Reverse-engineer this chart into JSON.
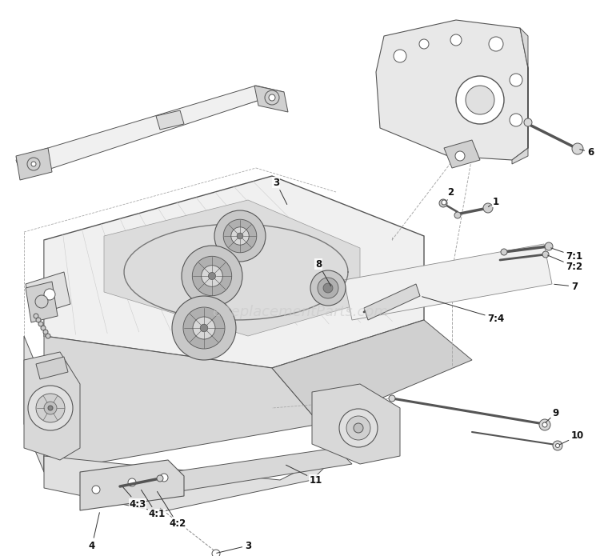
{
  "bg_color": "#ffffff",
  "watermark": "eReplacementParts.com",
  "watermark_color": "#c8c8c8",
  "watermark_alpha": 0.55,
  "line_color": "#555555",
  "light_line": "#aaaaaa",
  "body_fill": "#e8e8e8",
  "body_fill2": "#f0f0f0",
  "dark_fill": "#d0d0d0",
  "lw": 0.7
}
